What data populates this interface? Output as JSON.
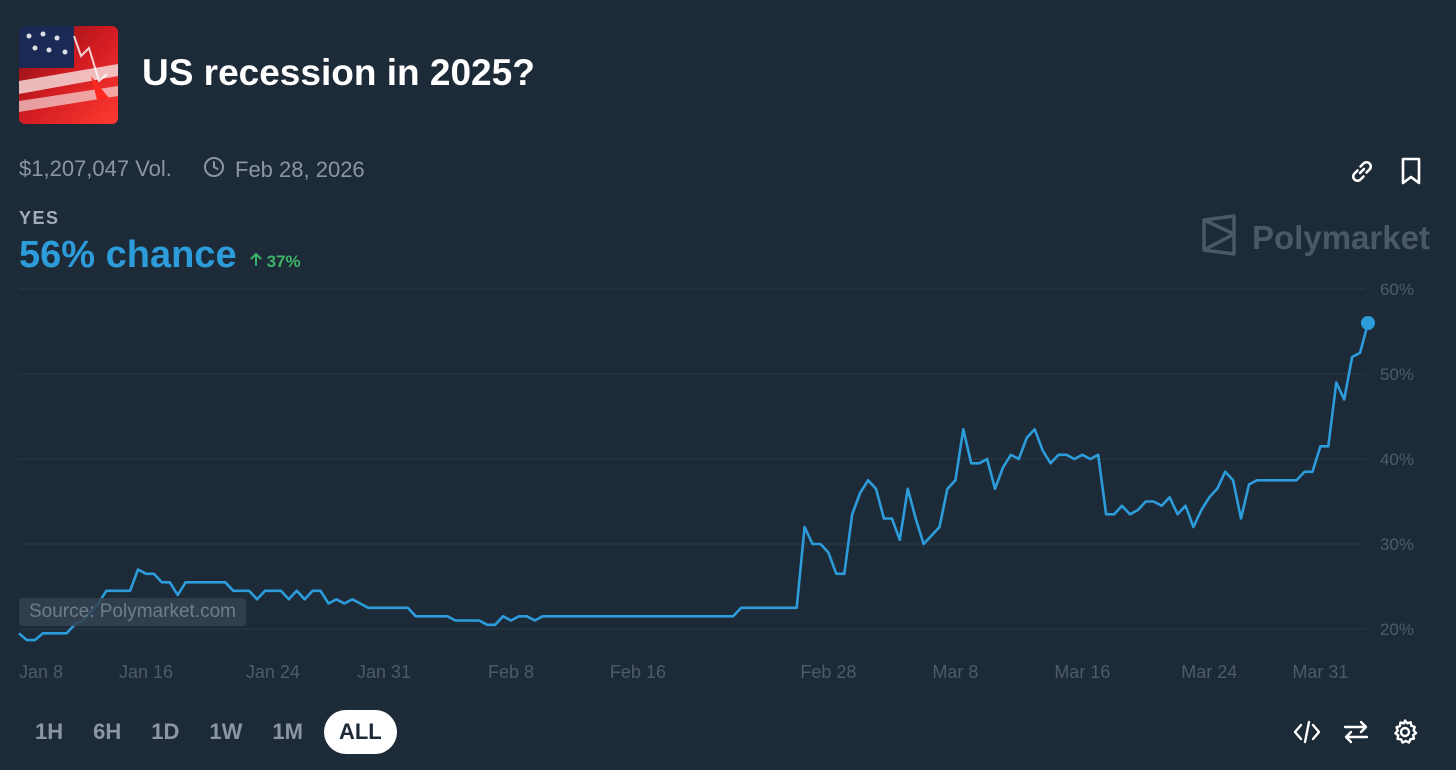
{
  "market": {
    "title": "US recession in 2025?",
    "volume": "$1,207,047 Vol.",
    "end_date": "Feb 28, 2026",
    "outcome": "YES",
    "chance": "56% chance",
    "change": "37%",
    "watermark": "Polymarket",
    "source": "Source: Polymarket.com"
  },
  "colors": {
    "line": "#2d9cdb",
    "positive": "#3db468",
    "background": "#1d2a38"
  },
  "icons": [
    "market-image-icon",
    "clock-icon",
    "link-icon",
    "bookmark-icon",
    "polymarket-logo-icon",
    "arrow-up-icon",
    "code-icon",
    "swap-icon",
    "gear-icon"
  ],
  "time_ranges": [
    {
      "label": "1H",
      "active": false
    },
    {
      "label": "6H",
      "active": false
    },
    {
      "label": "1D",
      "active": false
    },
    {
      "label": "1W",
      "active": false
    },
    {
      "label": "1M",
      "active": false
    },
    {
      "label": "ALL",
      "active": true
    }
  ],
  "chart_data": {
    "type": "line",
    "x_ticks": [
      "Jan 8",
      "Jan 16",
      "Jan 24",
      "Jan 31",
      "Feb 8",
      "Feb 16",
      "Feb 28",
      "Mar 8",
      "Mar 16",
      "Mar 24",
      "Mar 31"
    ],
    "y_ticks": [
      "20%",
      "30%",
      "40%",
      "50%",
      "60%"
    ],
    "ylim": [
      20,
      60
    ],
    "grid": true,
    "series": [
      {
        "values": [
          19.5,
          18.7,
          18.7,
          19.5,
          19.5,
          19.5,
          19.5,
          20.5,
          21,
          22,
          23,
          24.5,
          24.5,
          24.5,
          24.5,
          27,
          26.5,
          26.5,
          25.5,
          25.5,
          24,
          25.5,
          25.5,
          25.5,
          25.5,
          25.5,
          25.5,
          24.5,
          24.5,
          24.5,
          23.5,
          24.5,
          24.5,
          24.5,
          23.5,
          24.5,
          23.5,
          24.5,
          24.5,
          23,
          23.5,
          23,
          23.5,
          23,
          22.5,
          22.5,
          22.5,
          22.5,
          22.5,
          22.5,
          21.5,
          21.5,
          21.5,
          21.5,
          21.5,
          21,
          21,
          21,
          21,
          20.5,
          20.5,
          21.5,
          21,
          21.5,
          21.5,
          21,
          21.5,
          21.5,
          21.5,
          21.5,
          21.5,
          21.5,
          21.5,
          21.5,
          21.5,
          21.5,
          21.5,
          21.5,
          21.5,
          21.5,
          21.5,
          21.5,
          21.5,
          21.5,
          21.5,
          21.5,
          21.5,
          21.5,
          21.5,
          21.5,
          21.5,
          22.5,
          22.5,
          22.5,
          22.5,
          22.5,
          22.5,
          22.5,
          22.5,
          32,
          30,
          30,
          29,
          26.5,
          26.5,
          33.5,
          36,
          37.5,
          36.5,
          33,
          33,
          30.5,
          36.5,
          33,
          30,
          31,
          32,
          36.5,
          37.5,
          43.5,
          39.5,
          39.5,
          40,
          36.5,
          39,
          40.5,
          40,
          42.5,
          43.5,
          41,
          39.5,
          40.5,
          40.5,
          40,
          40.5,
          40,
          40.5,
          33.5,
          33.5,
          34.5,
          33.5,
          34,
          35,
          35,
          34.5,
          35.5,
          33.5,
          34.5,
          32,
          34,
          35.5,
          36.5,
          38.5,
          37.5,
          33,
          37,
          37.5,
          37.5,
          37.5,
          37.5,
          37.5,
          37.5,
          38.5,
          38.5,
          41.5,
          41.5,
          49,
          47,
          52,
          52.5,
          56
        ]
      }
    ]
  }
}
